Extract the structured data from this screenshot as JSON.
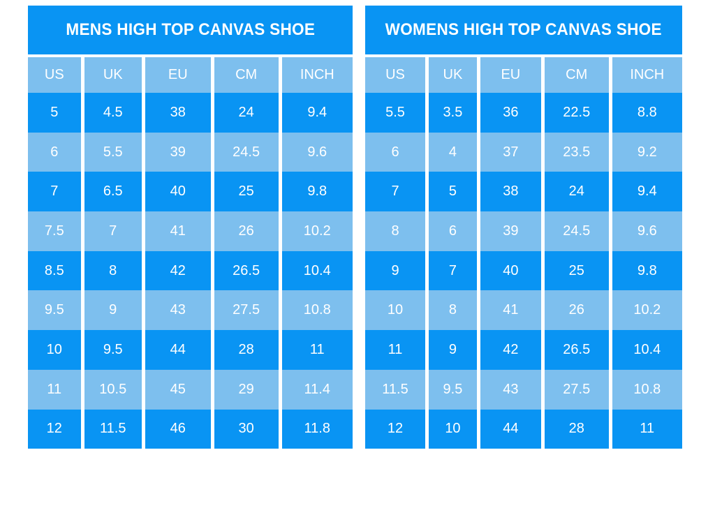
{
  "colors": {
    "primary_blue": "#0994f3",
    "light_blue": "#7dbfee",
    "text_white": "#ffffff",
    "page_background": "#ffffff"
  },
  "chart_data": [
    {
      "type": "table",
      "title": "MENS HIGH TOP CANVAS SHOE",
      "columns": [
        "US",
        "UK",
        "EU",
        "CM",
        "INCH"
      ],
      "rows": [
        [
          "5",
          "4.5",
          "38",
          "24",
          "9.4"
        ],
        [
          "6",
          "5.5",
          "39",
          "24.5",
          "9.6"
        ],
        [
          "7",
          "6.5",
          "40",
          "25",
          "9.8"
        ],
        [
          "7.5",
          "7",
          "41",
          "26",
          "10.2"
        ],
        [
          "8.5",
          "8",
          "42",
          "26.5",
          "10.4"
        ],
        [
          "9.5",
          "9",
          "43",
          "27.5",
          "10.8"
        ],
        [
          "10",
          "9.5",
          "44",
          "28",
          "11"
        ],
        [
          "11",
          "10.5",
          "45",
          "29",
          "11.4"
        ],
        [
          "12",
          "11.5",
          "46",
          "30",
          "11.8"
        ]
      ],
      "layout_hints": {
        "row_striping": "dark,light alternating starting dark",
        "header_fill": "light_blue",
        "title_fill": "primary_blue"
      }
    },
    {
      "type": "table",
      "title": "WOMENS HIGH TOP CANVAS SHOE",
      "columns": [
        "US",
        "UK",
        "EU",
        "CM",
        "INCH"
      ],
      "rows": [
        [
          "5.5",
          "3.5",
          "36",
          "22.5",
          "8.8"
        ],
        [
          "6",
          "4",
          "37",
          "23.5",
          "9.2"
        ],
        [
          "7",
          "5",
          "38",
          "24",
          "9.4"
        ],
        [
          "8",
          "6",
          "39",
          "24.5",
          "9.6"
        ],
        [
          "9",
          "7",
          "40",
          "25",
          "9.8"
        ],
        [
          "10",
          "8",
          "41",
          "26",
          "10.2"
        ],
        [
          "11",
          "9",
          "42",
          "26.5",
          "10.4"
        ],
        [
          "11.5",
          "9.5",
          "43",
          "27.5",
          "10.8"
        ],
        [
          "12",
          "10",
          "44",
          "28",
          "11"
        ]
      ],
      "layout_hints": {
        "row_striping": "dark,light alternating starting dark",
        "header_fill": "light_blue",
        "title_fill": "primary_blue"
      }
    }
  ]
}
